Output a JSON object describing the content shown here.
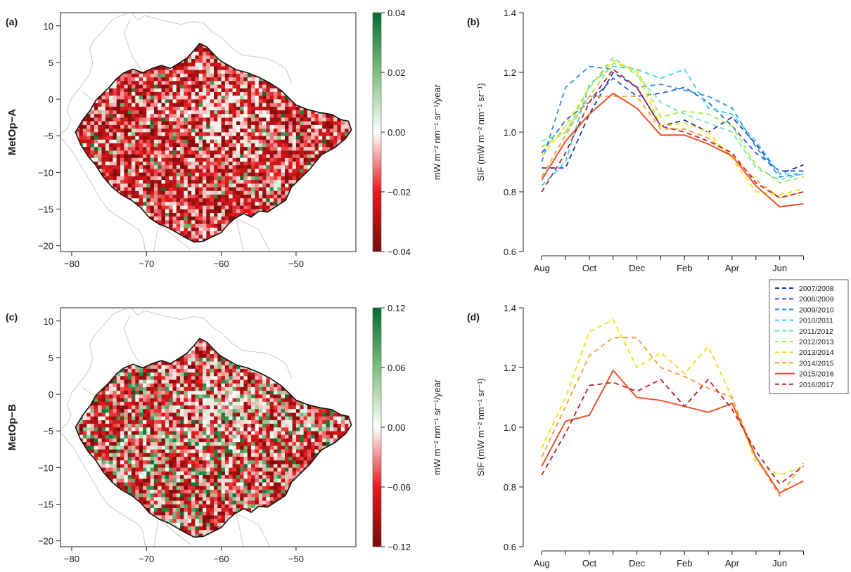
{
  "figure": {
    "row_labels": [
      "MetOp−A",
      "MetOp−B"
    ]
  },
  "chart_data": [
    {
      "panel": "(a)",
      "type": "heatmap",
      "row_label": "MetOp−A",
      "x_ticks": [
        "−80",
        "−70",
        "−60",
        "−50"
      ],
      "x_tick_values": [
        -80,
        -70,
        -60,
        -50
      ],
      "y_ticks": [
        "10",
        "5",
        "0",
        "−5",
        "−10",
        "−15",
        "−20"
      ],
      "y_tick_values": [
        10,
        5,
        0,
        -5,
        -10,
        -15,
        -20
      ],
      "xlim": [
        -81.5,
        -42
      ],
      "ylim": [
        -20.8,
        11.8
      ],
      "colorbar": {
        "label": "mW m⁻² nm⁻¹ sr⁻¹/year",
        "ticks": [
          "0.04",
          "0.02",
          "0.00",
          "−0.02",
          "−0.04"
        ],
        "tick_values": [
          0.04,
          0.02,
          0.0,
          -0.02,
          -0.04
        ],
        "range": [
          -0.04,
          0.04
        ],
        "colors": [
          "#7a0a0a",
          "#e41a1c",
          "#ffffff",
          "#7fbf7f",
          "#006d2c"
        ]
      }
    },
    {
      "panel": "(b)",
      "type": "line",
      "ylabel": "SIF (mW m⁻² nm⁻¹ sr⁻¹)",
      "ylim": [
        0.6,
        1.4
      ],
      "y_ticks": [
        "0.6",
        "0.8",
        "1.0",
        "1.2",
        "1.4"
      ],
      "y_tick_values": [
        0.6,
        0.8,
        1.0,
        1.2,
        1.4
      ],
      "x_ticks": [
        "Aug",
        "Oct",
        "Dec",
        "Feb",
        "Apr",
        "Jun"
      ],
      "x_tick_positions": [
        1,
        3,
        5,
        7,
        9,
        11
      ],
      "x": [
        1,
        2,
        3,
        4,
        5,
        6,
        7,
        8,
        9,
        10,
        11,
        12
      ],
      "series": [
        {
          "name": "2007/2008",
          "color": "#1f31b4",
          "dash": true,
          "values": [
            0.88,
            0.88,
            1.06,
            1.2,
            1.15,
            1.02,
            1.04,
            1.0,
            1.05,
            0.96,
            0.86,
            0.89
          ]
        },
        {
          "name": "2008/2009",
          "color": "#2b5bd6",
          "dash": true,
          "values": [
            0.93,
            1.04,
            1.1,
            1.18,
            1.12,
            1.13,
            1.15,
            1.1,
            1.02,
            0.93,
            0.87,
            0.87
          ]
        },
        {
          "name": "2009/2010",
          "color": "#2f8fe0",
          "dash": true,
          "values": [
            0.9,
            1.15,
            1.22,
            1.21,
            1.15,
            1.16,
            1.14,
            1.12,
            1.08,
            0.95,
            0.85,
            0.86
          ]
        },
        {
          "name": "2010/2011",
          "color": "#2fd3e6",
          "dash": true,
          "values": [
            0.82,
            0.9,
            1.16,
            1.22,
            1.21,
            1.18,
            1.21,
            1.08,
            1.06,
            0.97,
            0.86,
            0.86
          ]
        },
        {
          "name": "2011/2012",
          "color": "#6fe6b0",
          "dash": true,
          "values": [
            0.97,
            1.0,
            1.15,
            1.25,
            1.19,
            1.1,
            1.06,
            1.03,
            1.0,
            0.88,
            0.84,
            0.86
          ]
        },
        {
          "name": "2012/2013",
          "color": "#a8e64c",
          "dash": true,
          "values": [
            0.95,
            1.0,
            1.12,
            1.23,
            1.21,
            1.05,
            1.07,
            1.06,
            1.02,
            0.89,
            0.83,
            0.85
          ]
        },
        {
          "name": "2013/2014",
          "color": "#f0e000",
          "dash": true,
          "values": [
            0.92,
            1.02,
            1.15,
            1.24,
            1.2,
            1.02,
            1.03,
            1.0,
            0.91,
            0.8,
            0.79,
            0.81
          ]
        },
        {
          "name": "2014/2015",
          "color": "#f0a030",
          "dash": true,
          "values": [
            0.85,
            0.99,
            1.12,
            1.12,
            1.12,
            1.01,
            1.01,
            0.98,
            0.92,
            0.84,
            0.78,
            0.8
          ]
        },
        {
          "name": "2015/2016",
          "color": "#e8532a",
          "dash": false,
          "values": [
            0.84,
            0.97,
            1.06,
            1.13,
            1.08,
            0.99,
            0.99,
            0.96,
            0.92,
            0.82,
            0.75,
            0.76
          ]
        },
        {
          "name": "2016/2017",
          "color": "#b8202a",
          "dash": true,
          "values": [
            0.8,
            0.93,
            1.1,
            1.21,
            1.15,
            1.02,
            1.0,
            0.97,
            0.93,
            0.83,
            0.78,
            0.8
          ]
        }
      ]
    },
    {
      "panel": "(c)",
      "type": "heatmap",
      "row_label": "MetOp−B",
      "x_ticks": [
        "−80",
        "−70",
        "−60",
        "−50"
      ],
      "x_tick_values": [
        -80,
        -70,
        -60,
        -50
      ],
      "y_ticks": [
        "10",
        "5",
        "0",
        "−5",
        "−10",
        "−15",
        "−20"
      ],
      "y_tick_values": [
        10,
        5,
        0,
        -5,
        -10,
        -15,
        -20
      ],
      "xlim": [
        -81.5,
        -42
      ],
      "ylim": [
        -20.8,
        11.8
      ],
      "colorbar": {
        "label": "mW m⁻² nm⁻¹ sr⁻¹/year",
        "ticks": [
          "0.12",
          "0.06",
          "0.00",
          "−0.06",
          "−0.12"
        ],
        "tick_values": [
          0.12,
          0.06,
          0.0,
          -0.06,
          -0.12
        ],
        "range": [
          -0.12,
          0.12
        ],
        "colors": [
          "#7a0a0a",
          "#e41a1c",
          "#ffffff",
          "#7fbf7f",
          "#006d2c"
        ]
      }
    },
    {
      "panel": "(d)",
      "type": "line",
      "ylabel": "SIF (mW m⁻² nm⁻¹ sr⁻¹)",
      "ylim": [
        0.6,
        1.4
      ],
      "y_ticks": [
        "0.6",
        "0.8",
        "1.0",
        "1.2",
        "1.4"
      ],
      "y_tick_values": [
        0.6,
        0.8,
        1.0,
        1.2,
        1.4
      ],
      "x_ticks": [
        "Aug",
        "Oct",
        "Dec",
        "Feb",
        "Apr",
        "Jun"
      ],
      "x_tick_positions": [
        1,
        3,
        5,
        7,
        9,
        11
      ],
      "x": [
        1,
        2,
        3,
        4,
        5,
        6,
        7,
        8,
        9,
        10,
        11,
        12
      ],
      "series": [
        {
          "name": "2013/2014",
          "color": "#f0e000",
          "dash": true,
          "values": [
            0.93,
            1.1,
            1.32,
            1.36,
            1.2,
            1.25,
            1.18,
            1.27,
            1.1,
            0.88,
            0.84,
            0.87
          ]
        },
        {
          "name": "2014/2015",
          "color": "#f0a030",
          "dash": true,
          "values": [
            0.9,
            1.07,
            1.24,
            1.3,
            1.3,
            1.2,
            1.17,
            1.13,
            1.1,
            0.9,
            0.77,
            0.88
          ]
        },
        {
          "name": "2015/2016",
          "color": "#e8532a",
          "dash": false,
          "values": [
            0.87,
            1.02,
            1.04,
            1.19,
            1.1,
            1.09,
            1.07,
            1.05,
            1.08,
            0.9,
            0.78,
            0.82
          ]
        },
        {
          "name": "2016/2017",
          "color": "#b8202a",
          "dash": true,
          "values": [
            0.84,
            0.98,
            1.14,
            1.15,
            1.12,
            1.16,
            1.07,
            1.16,
            1.06,
            0.92,
            0.81,
            0.87
          ]
        }
      ]
    }
  ],
  "legend": {
    "placement": "right, between panels (b) and (d)",
    "entries": [
      {
        "name": "2007/2008",
        "color": "#1f31b4",
        "dash": true
      },
      {
        "name": "2008/2009",
        "color": "#2b5bd6",
        "dash": true
      },
      {
        "name": "2009/2010",
        "color": "#2f8fe0",
        "dash": true
      },
      {
        "name": "2010/2011",
        "color": "#2fd3e6",
        "dash": true
      },
      {
        "name": "2011/2012",
        "color": "#6fe6b0",
        "dash": true
      },
      {
        "name": "2012/2013",
        "color": "#a8e64c",
        "dash": true
      },
      {
        "name": "2013/2014",
        "color": "#f0e000",
        "dash": true
      },
      {
        "name": "2014/2015",
        "color": "#f0a030",
        "dash": true
      },
      {
        "name": "2015/2016",
        "color": "#e8532a",
        "dash": false
      },
      {
        "name": "2016/2017",
        "color": "#b8202a",
        "dash": true
      }
    ]
  }
}
